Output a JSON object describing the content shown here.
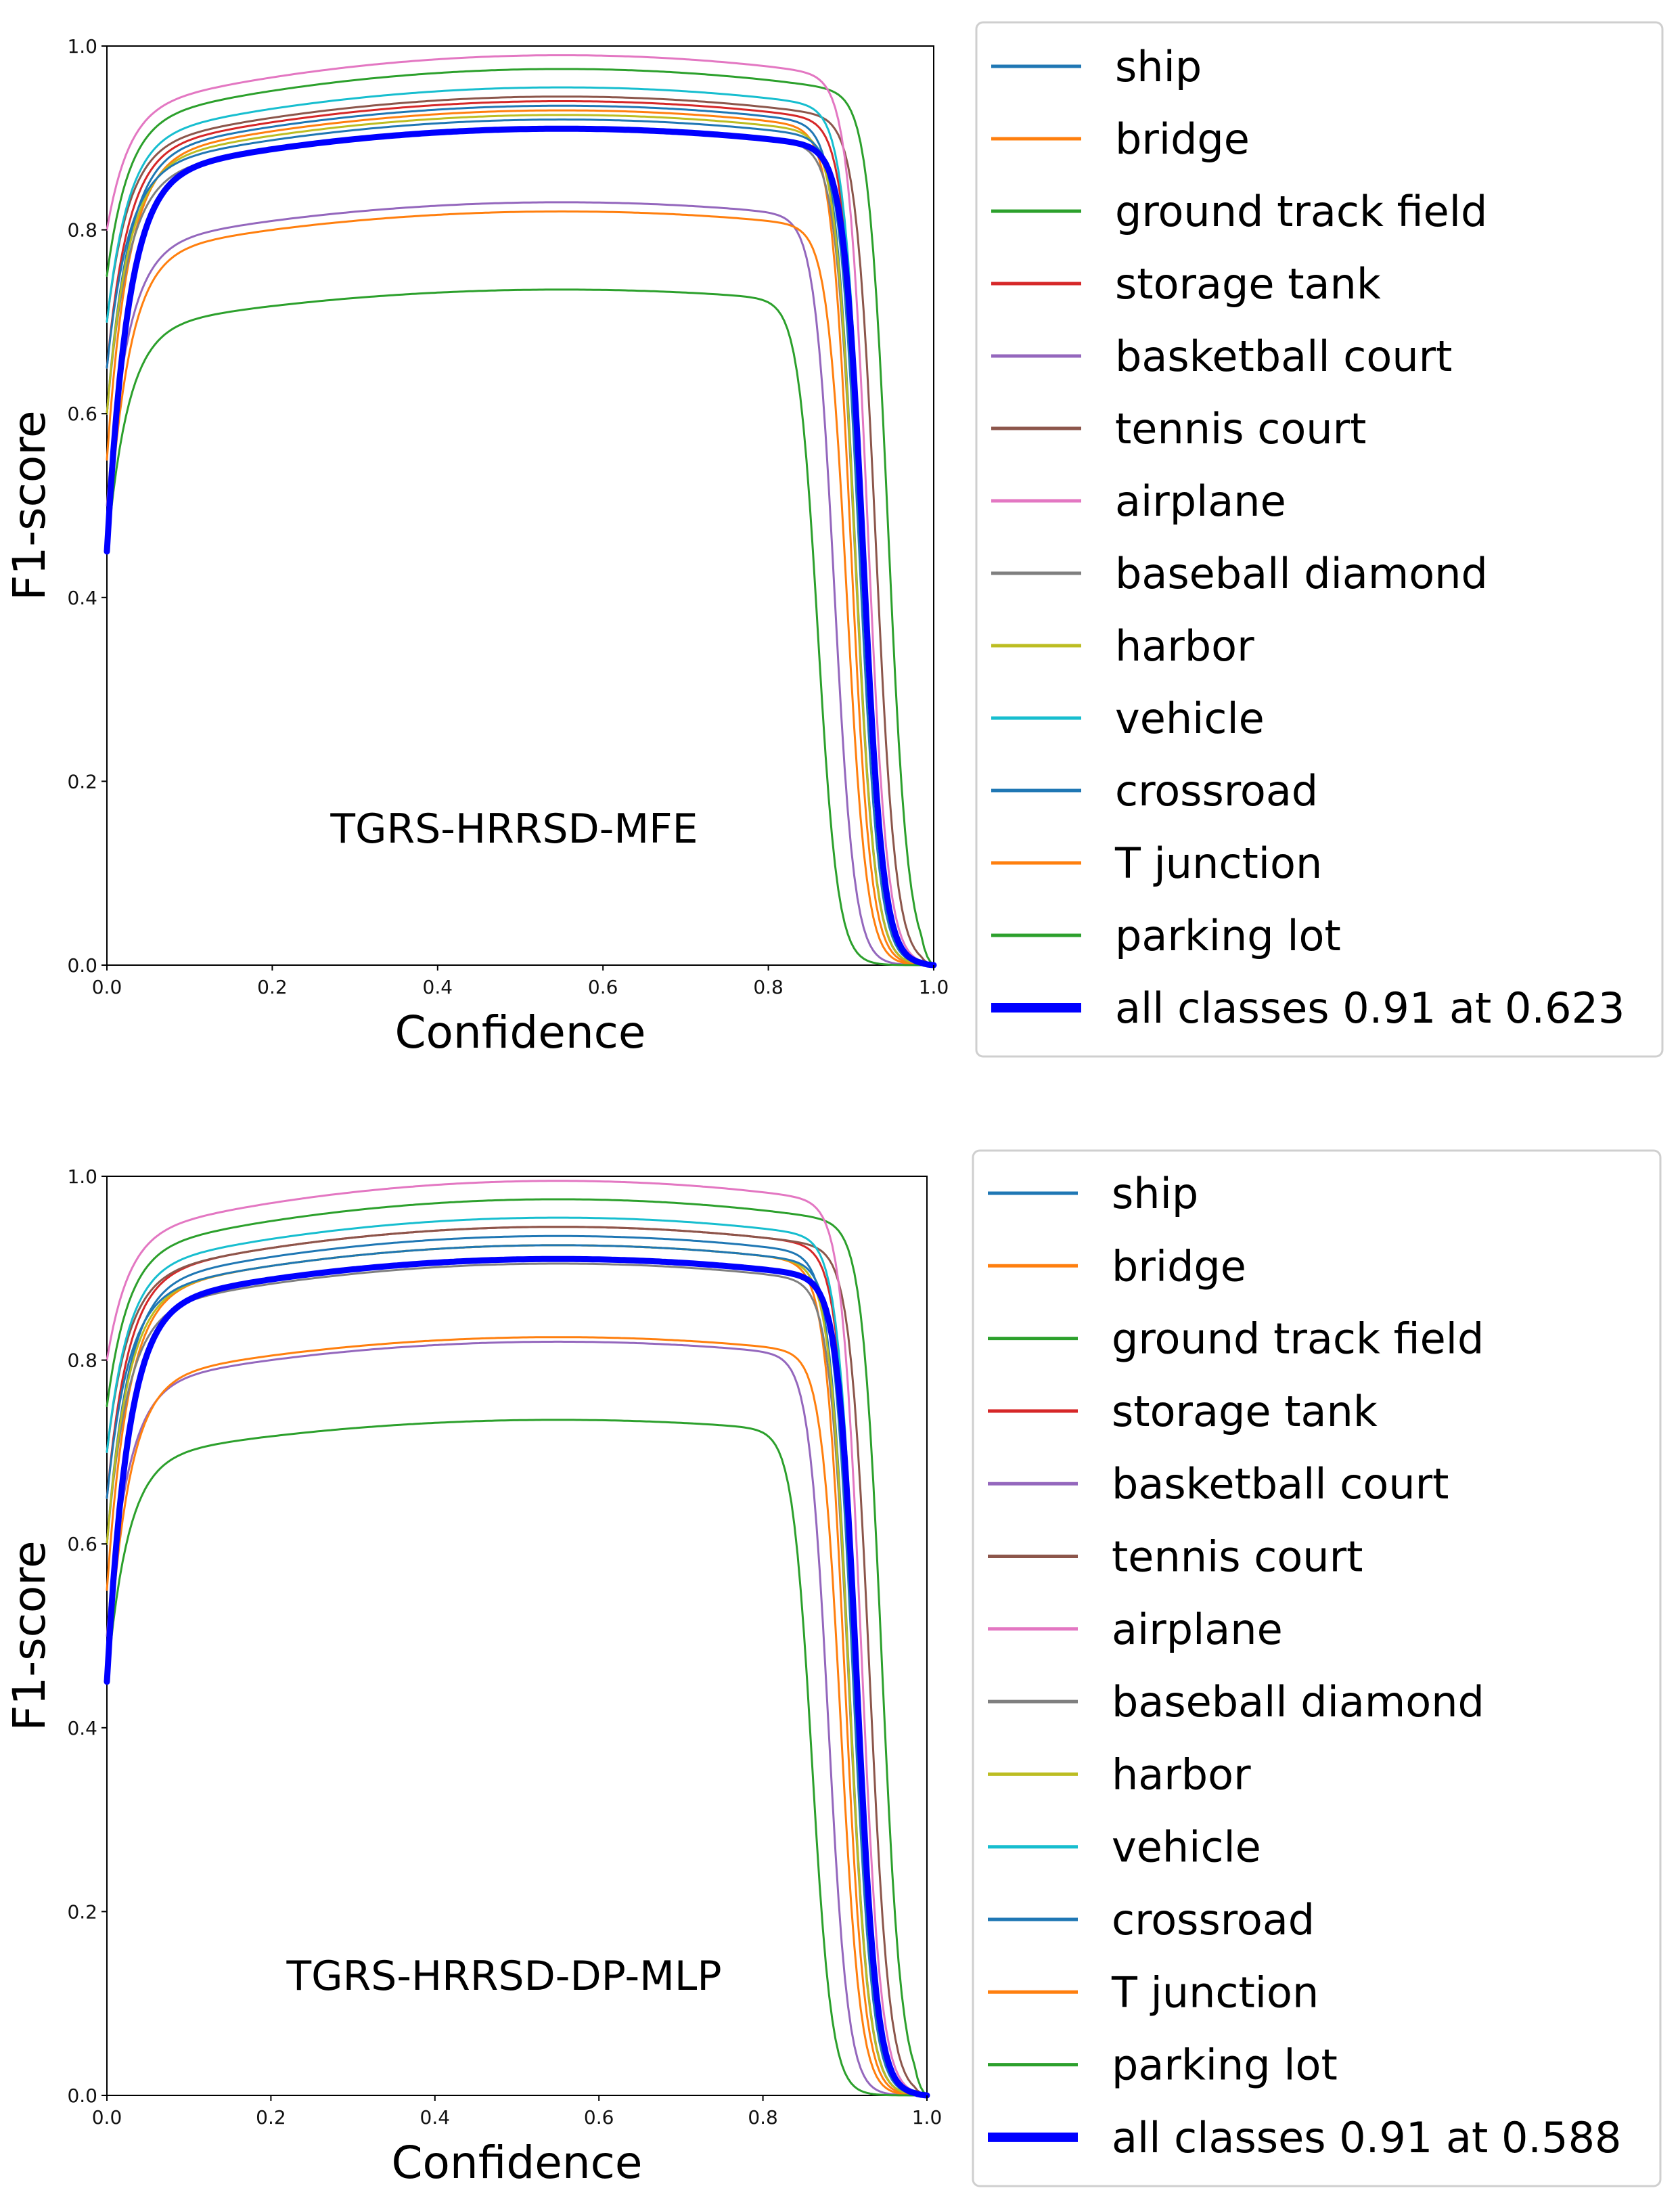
{
  "chart_data": [
    {
      "type": "line",
      "annotation": "TGRS-HRRSD-MFE",
      "xlabel": "Confidence",
      "ylabel": "F1-score",
      "xlim": [
        0.0,
        1.0
      ],
      "ylim": [
        0.0,
        1.0
      ],
      "xticks": [
        "0.0",
        "0.2",
        "0.4",
        "0.6",
        "0.8",
        "1.0"
      ],
      "yticks": [
        "0.0",
        "0.2",
        "0.4",
        "0.6",
        "0.8",
        "1.0"
      ],
      "legend_position": "right (outside)",
      "series": [
        {
          "name": "ship",
          "color": "#1f77b4",
          "y0": 0.6,
          "plateau": 0.935,
          "drop": 0.905,
          "lw": 3
        },
        {
          "name": "bridge",
          "color": "#ff7f0e",
          "y0": 0.55,
          "plateau": 0.93,
          "drop": 0.9,
          "lw": 3
        },
        {
          "name": "ground track field",
          "color": "#2ca02c",
          "y0": 0.75,
          "plateau": 0.975,
          "drop": 0.945,
          "lw": 3
        },
        {
          "name": "storage tank",
          "color": "#d62728",
          "y0": 0.65,
          "plateau": 0.94,
          "drop": 0.915,
          "lw": 3
        },
        {
          "name": "basketball court",
          "color": "#9467bd",
          "y0": 0.5,
          "plateau": 0.83,
          "drop": 0.88,
          "lw": 3
        },
        {
          "name": "tennis court",
          "color": "#8c564b",
          "y0": 0.7,
          "plateau": 0.945,
          "drop": 0.93,
          "lw": 3
        },
        {
          "name": "airplane",
          "color": "#e377c2",
          "y0": 0.8,
          "plateau": 0.99,
          "drop": 0.92,
          "lw": 3
        },
        {
          "name": "baseball diamond",
          "color": "#7f7f7f",
          "y0": 0.6,
          "plateau": 0.91,
          "drop": 0.905,
          "lw": 3
        },
        {
          "name": "harbor",
          "color": "#bcbd22",
          "y0": 0.6,
          "plateau": 0.925,
          "drop": 0.905,
          "lw": 3
        },
        {
          "name": "vehicle",
          "color": "#17becf",
          "y0": 0.7,
          "plateau": 0.955,
          "drop": 0.915,
          "lw": 3
        },
        {
          "name": "crossroad",
          "color": "#1f77b4",
          "y0": 0.65,
          "plateau": 0.92,
          "drop": 0.91,
          "lw": 3
        },
        {
          "name": "T junction",
          "color": "#ff7f0e",
          "y0": 0.45,
          "plateau": 0.82,
          "drop": 0.895,
          "lw": 3
        },
        {
          "name": "parking lot",
          "color": "#2ca02c",
          "y0": 0.45,
          "plateau": 0.735,
          "drop": 0.86,
          "lw": 3
        },
        {
          "name": "all classes 0.91 at 0.623",
          "color": "#0000ff",
          "y0": 0.45,
          "plateau": 0.91,
          "drop": 0.915,
          "lw": 9
        }
      ]
    },
    {
      "type": "line",
      "annotation": "TGRS-HRRSD-DP-MLP",
      "xlabel": "Confidence",
      "ylabel": "F1-score",
      "xlim": [
        0.0,
        1.0
      ],
      "ylim": [
        0.0,
        1.0
      ],
      "xticks": [
        "0.0",
        "0.2",
        "0.4",
        "0.6",
        "0.8",
        "1.0"
      ],
      "yticks": [
        "0.0",
        "0.2",
        "0.4",
        "0.6",
        "0.8",
        "1.0"
      ],
      "legend_position": "right (outside)",
      "series": [
        {
          "name": "ship",
          "color": "#1f77b4",
          "y0": 0.6,
          "plateau": 0.935,
          "drop": 0.905,
          "lw": 3
        },
        {
          "name": "bridge",
          "color": "#ff7f0e",
          "y0": 0.55,
          "plateau": 0.925,
          "drop": 0.9,
          "lw": 3
        },
        {
          "name": "ground track field",
          "color": "#2ca02c",
          "y0": 0.75,
          "plateau": 0.975,
          "drop": 0.945,
          "lw": 3
        },
        {
          "name": "storage tank",
          "color": "#d62728",
          "y0": 0.65,
          "plateau": 0.945,
          "drop": 0.915,
          "lw": 3
        },
        {
          "name": "basketball court",
          "color": "#9467bd",
          "y0": 0.5,
          "plateau": 0.82,
          "drop": 0.88,
          "lw": 3
        },
        {
          "name": "tennis court",
          "color": "#8c564b",
          "y0": 0.7,
          "plateau": 0.945,
          "drop": 0.93,
          "lw": 3
        },
        {
          "name": "airplane",
          "color": "#e377c2",
          "y0": 0.8,
          "plateau": 0.995,
          "drop": 0.92,
          "lw": 3
        },
        {
          "name": "baseball diamond",
          "color": "#7f7f7f",
          "y0": 0.6,
          "plateau": 0.905,
          "drop": 0.905,
          "lw": 3
        },
        {
          "name": "harbor",
          "color": "#bcbd22",
          "y0": 0.6,
          "plateau": 0.925,
          "drop": 0.905,
          "lw": 3
        },
        {
          "name": "vehicle",
          "color": "#17becf",
          "y0": 0.7,
          "plateau": 0.955,
          "drop": 0.915,
          "lw": 3
        },
        {
          "name": "crossroad",
          "color": "#1f77b4",
          "y0": 0.65,
          "plateau": 0.925,
          "drop": 0.91,
          "lw": 3
        },
        {
          "name": "T junction",
          "color": "#ff7f0e",
          "y0": 0.45,
          "plateau": 0.825,
          "drop": 0.895,
          "lw": 3
        },
        {
          "name": "parking lot",
          "color": "#2ca02c",
          "y0": 0.45,
          "plateau": 0.735,
          "drop": 0.86,
          "lw": 3
        },
        {
          "name": "all classes 0.91 at 0.588",
          "color": "#0000ff",
          "y0": 0.45,
          "plateau": 0.91,
          "drop": 0.915,
          "lw": 9
        }
      ]
    }
  ]
}
